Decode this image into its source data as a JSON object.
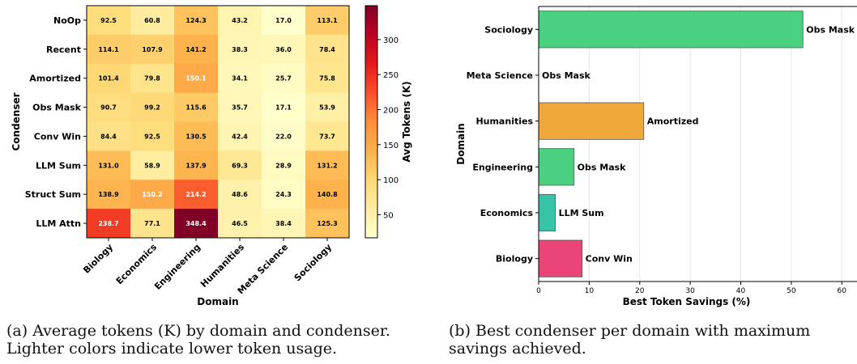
{
  "chart_data": [
    {
      "type": "heatmap",
      "xlabel": "Domain",
      "ylabel": "Condenser",
      "x_categories": [
        "Biology",
        "Economics",
        "Engineering",
        "Humanities",
        "Meta Science",
        "Sociology"
      ],
      "y_categories": [
        "NoOp",
        "Recent",
        "Amortized",
        "Obs Mask",
        "Conv Win",
        "LLM Sum",
        "Struct Sum",
        "LLM Attn"
      ],
      "values": [
        [
          92.5,
          60.8,
          124.3,
          43.2,
          17.0,
          113.1
        ],
        [
          114.1,
          107.9,
          141.2,
          38.3,
          36.0,
          78.4
        ],
        [
          101.4,
          79.8,
          150.1,
          34.1,
          25.7,
          75.8
        ],
        [
          90.7,
          99.2,
          115.6,
          35.7,
          17.1,
          53.9
        ],
        [
          84.4,
          92.5,
          130.5,
          42.4,
          22.0,
          73.7
        ],
        [
          131.0,
          58.9,
          137.9,
          69.3,
          28.9,
          131.2
        ],
        [
          138.9,
          150.2,
          214.2,
          48.6,
          24.3,
          140.8
        ],
        [
          238.7,
          77.1,
          348.4,
          46.5,
          38.4,
          125.3
        ]
      ],
      "value_labels": [
        [
          "92.5",
          "60.8",
          "124.3",
          "43.2",
          "17.0",
          "113.1"
        ],
        [
          "114.1",
          "107.9",
          "141.2",
          "38.3",
          "36.0",
          "78.4"
        ],
        [
          "101.4",
          "79.8",
          "150.1",
          "34.1",
          "25.7",
          "75.8"
        ],
        [
          "90.7",
          "99.2",
          "115.6",
          "35.7",
          "17.1",
          "53.9"
        ],
        [
          "84.4",
          "92.5",
          "130.5",
          "42.4",
          "22.0",
          "73.7"
        ],
        [
          "131.0",
          "58.9",
          "137.9",
          "69.3",
          "28.9",
          "131.2"
        ],
        [
          "138.9",
          "150.2",
          "214.2",
          "48.6",
          "24.3",
          "140.8"
        ],
        [
          "238.7",
          "77.1",
          "348.4",
          "46.5",
          "38.4",
          "125.3"
        ]
      ],
      "colorbar": {
        "label": "Avg Tokens (K)",
        "range": [
          17.0,
          348.4
        ],
        "ticks": [
          "50",
          "100",
          "150",
          "200",
          "250",
          "300"
        ],
        "colormap": "YlOrRd"
      }
    },
    {
      "type": "bar",
      "orientation": "horizontal",
      "xlabel": "Best Token Savings (%)",
      "ylabel": "Domain",
      "xlim": [
        0,
        63
      ],
      "xticks": [
        "0",
        "10",
        "20",
        "30",
        "40",
        "50",
        "60"
      ],
      "grid": "vertical",
      "categories": [
        "Sociology",
        "Meta Science",
        "Humanities",
        "Engineering",
        "Economics",
        "Biology"
      ],
      "values": [
        52.3,
        0.0,
        20.8,
        7.0,
        3.3,
        8.6
      ],
      "bar_labels": [
        "Obs Mask",
        "Obs Mask",
        "Amortized",
        "Obs Mask",
        "LLM Sum",
        "Conv Win"
      ],
      "colors": [
        "#4ad17f",
        "#4ad17f",
        "#f0a83a",
        "#4ad17f",
        "#36c3a8",
        "#ea4478"
      ]
    }
  ],
  "captions": {
    "a": "(a) Average tokens (K) by domain and condenser. Lighter colors indicate lower token usage.",
    "b": "(b) Best condenser per domain with maximum savings achieved."
  }
}
